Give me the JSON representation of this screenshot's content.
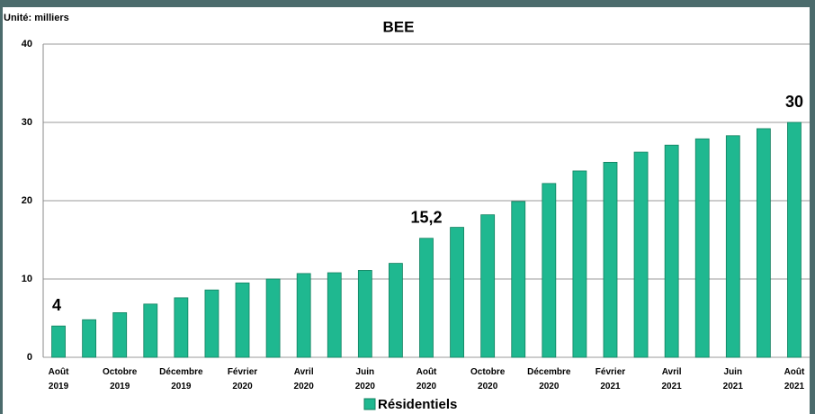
{
  "chart_data": {
    "type": "bar",
    "title": "BEE",
    "unit_label": "Unité: milliers",
    "categories": [
      "Août 2019",
      null,
      "Octobre 2019",
      null,
      "Décembre 2019",
      null,
      "Février 2020",
      null,
      "Avril 2020",
      null,
      "Juin 2020",
      null,
      "Août 2020",
      null,
      "Octobre 2020",
      null,
      "Décembre 2020",
      null,
      "Février 2021",
      null,
      "Avril 2021",
      null,
      "Juin 2021",
      null,
      "Août 2021"
    ],
    "series": [
      {
        "name": "Résidentiels",
        "color": "#1fb890",
        "values": [
          4,
          4.8,
          5.7,
          6.8,
          7.6,
          8.6,
          9.5,
          10.0,
          10.7,
          10.8,
          11.1,
          12.0,
          15.2,
          16.6,
          18.2,
          19.9,
          22.2,
          23.8,
          24.9,
          26.2,
          27.1,
          27.9,
          28.3,
          29.2,
          30
        ],
        "value_labels": [
          "4",
          null,
          null,
          null,
          null,
          null,
          null,
          null,
          null,
          null,
          null,
          null,
          "15,2",
          null,
          null,
          null,
          null,
          null,
          null,
          null,
          null,
          null,
          null,
          null,
          "30"
        ]
      }
    ],
    "ylim": [
      0,
      40
    ],
    "yticks": [
      0,
      10,
      20,
      30,
      40
    ],
    "grid": true
  }
}
